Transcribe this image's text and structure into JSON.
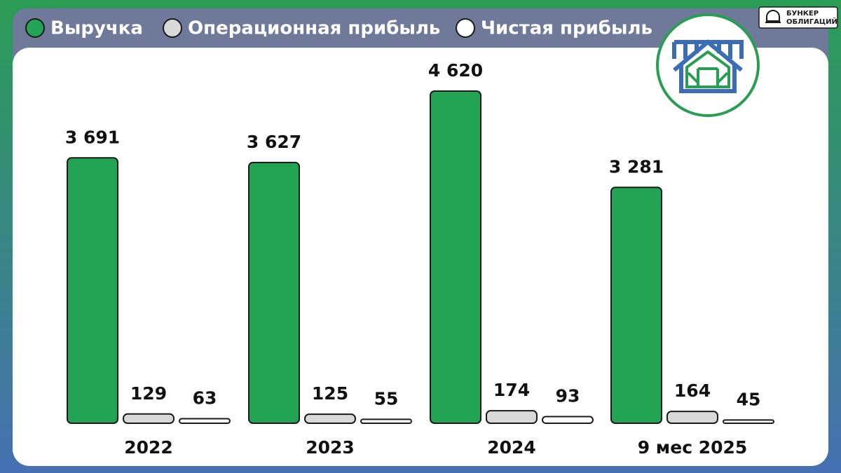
{
  "brand": [
    "БУНКЕР",
    "ОБЛИГАЦИЙ"
  ],
  "chart_data": {
    "type": "bar",
    "categories": [
      "2022",
      "2023",
      "2024",
      "9 мес 2025"
    ],
    "series": [
      {
        "name": "Выручка",
        "color": "#23a455",
        "values": [
          3691,
          3627,
          4620,
          3281
        ],
        "value_labels": [
          "3 691",
          "3 627",
          "4 620",
          "3 281"
        ]
      },
      {
        "name": "Операционная прибыль",
        "color": "#d9d9d9",
        "values": [
          129,
          125,
          174,
          164
        ]
      },
      {
        "name": "Чистая прибыль",
        "color": "#ffffff",
        "values": [
          63,
          55,
          93,
          45
        ]
      }
    ]
  }
}
